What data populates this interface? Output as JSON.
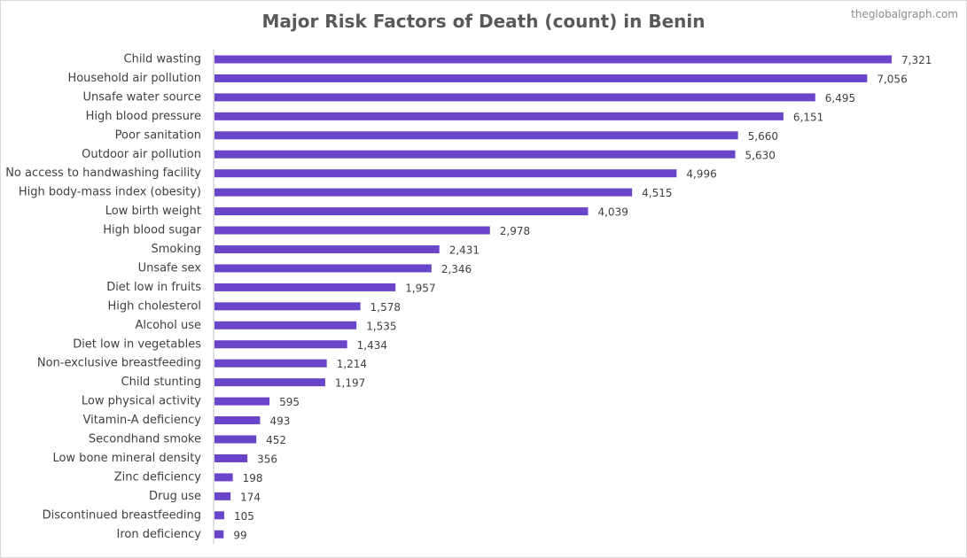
{
  "header": {
    "title": "Major Risk Factors of Death (count) in Benin",
    "watermark": "theglobalgraph.com"
  },
  "colors": {
    "bar": "#6a45c9",
    "axis": "#bfbfbf",
    "text": "#404040",
    "title": "#595959"
  },
  "chart_data": {
    "type": "bar",
    "orientation": "horizontal",
    "title": "Major Risk Factors of Death (count) in Benin",
    "xlabel": "",
    "ylabel": "",
    "grid": false,
    "legend": "none",
    "xlim": [
      0,
      7321
    ],
    "categories": [
      "Child wasting",
      "Household air pollution",
      "Unsafe water source",
      "High blood pressure",
      "Poor sanitation",
      "Outdoor air pollution",
      "No access to handwashing facility",
      "High body-mass index (obesity)",
      "Low birth weight",
      "High blood sugar",
      "Smoking",
      "Unsafe sex",
      "Diet low in fruits",
      "High cholesterol",
      "Alcohol use",
      "Diet low in vegetables",
      "Non-exclusive breastfeeding",
      "Child stunting",
      "Low physical activity",
      "Vitamin-A deficiency",
      "Secondhand smoke",
      "Low bone mineral density",
      "Zinc deficiency",
      "Drug use",
      "Discontinued breastfeeding",
      "Iron deficiency"
    ],
    "values": [
      7321,
      7056,
      6495,
      6151,
      5660,
      5630,
      4996,
      4515,
      4039,
      2978,
      2431,
      2346,
      1957,
      1578,
      1535,
      1434,
      1214,
      1197,
      595,
      493,
      452,
      356,
      198,
      174,
      105,
      99
    ],
    "value_labels": [
      "7,321",
      "7,056",
      "6,495",
      "6,151",
      "5,660",
      "5,630",
      "4,996",
      "4,515",
      "4,039",
      "2,978",
      "2,431",
      "2,346",
      "1,957",
      "1,578",
      "1,535",
      "1,434",
      "1,214",
      "1,197",
      "595",
      "493",
      "452",
      "356",
      "198",
      "174",
      "105",
      "99"
    ]
  }
}
